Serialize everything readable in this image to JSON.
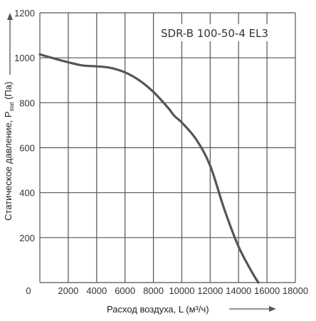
{
  "chart_data": {
    "type": "line",
    "title": "SDR-B 100-50-4 EL3",
    "xlabel_main": "Расход воздуха, L (м³/ч)",
    "ylabel_main": "Статическое давление, P",
    "ylabel_sub": "stat",
    "ylabel_unit": " (Па)",
    "xlim": [
      0,
      18000
    ],
    "ylim": [
      0,
      1200
    ],
    "xticks": [
      0,
      2000,
      4000,
      6000,
      8000,
      10000,
      12000,
      14000,
      16000,
      18000
    ],
    "yticks": [
      200,
      400,
      600,
      800,
      1000,
      1200
    ],
    "x_gridlines": [
      0,
      2000,
      4000,
      6000,
      8000,
      10000,
      12000,
      14000,
      16000,
      18000
    ],
    "y_gridlines": [
      0,
      200,
      400,
      600,
      800,
      1000,
      1200
    ],
    "grid": true,
    "line_color": "#555555",
    "grid_color": "#555555",
    "series": [
      {
        "x": [
          0,
          1000,
          2000,
          3000,
          4000,
          5000,
          6000,
          7000,
          8000,
          9000,
          9500,
          10000,
          11000,
          12000,
          13000,
          14000,
          15000,
          15400
        ],
        "y": [
          1015,
          997,
          980,
          966,
          962,
          955,
          935,
          900,
          848,
          780,
          740,
          712,
          638,
          520,
          325,
          160,
          40,
          0
        ]
      }
    ]
  }
}
